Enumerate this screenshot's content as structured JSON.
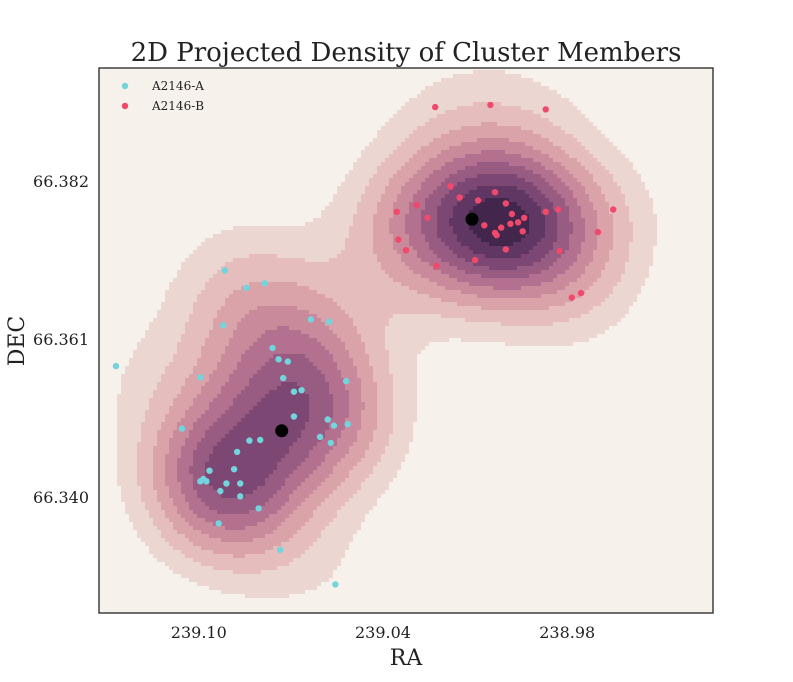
{
  "chart_data": {
    "type": "scatter",
    "title": "2D Projected Density of Cluster Members",
    "xlabel": "RA",
    "ylabel": "DEC",
    "xlim": [
      239.1325,
      238.9325
    ],
    "ylim": [
      66.3246,
      66.397
    ],
    "xticks": [
      239.1,
      239.04,
      238.98
    ],
    "xtick_labels": [
      "239.10",
      "239.04",
      "238.98"
    ],
    "yticks": [
      66.34,
      66.361,
      66.382
    ],
    "ytick_labels": [
      "66.340",
      "66.361",
      "66.382"
    ],
    "grid": false,
    "legend_position": "top-left",
    "background_color": "#f7f1eb",
    "density_colors": [
      "#ecd6d1",
      "#e5bdbc",
      "#d9a3a9",
      "#c98b9c",
      "#b3718f",
      "#985b82",
      "#7c4873",
      "#5f3762",
      "#42264b"
    ],
    "density_levels": [
      0.12,
      0.22,
      0.32,
      0.42,
      0.52,
      0.62,
      0.72,
      0.82,
      0.92
    ],
    "series": [
      {
        "name": "A2146-A",
        "color": "#72d4dc",
        "points": [
          [
            239.127,
            66.3574
          ],
          [
            239.1055,
            66.3491
          ],
          [
            239.0995,
            66.3559
          ],
          [
            239.0915,
            66.3701
          ],
          [
            239.092,
            66.3628
          ],
          [
            239.0845,
            66.3678
          ],
          [
            239.0785,
            66.3684
          ],
          [
            239.076,
            66.3598
          ],
          [
            239.074,
            66.3583
          ],
          [
            239.071,
            66.358
          ],
          [
            239.069,
            66.354
          ],
          [
            239.069,
            66.3507
          ],
          [
            239.0635,
            66.3636
          ],
          [
            239.0575,
            66.3633
          ],
          [
            239.052,
            66.3554
          ],
          [
            239.057,
            66.3472
          ],
          [
            239.058,
            66.3503
          ],
          [
            239.056,
            66.3495
          ],
          [
            239.0605,
            66.348
          ],
          [
            239.0515,
            66.3497
          ],
          [
            239.08,
            66.3476
          ],
          [
            239.0835,
            66.3475
          ],
          [
            239.0875,
            66.346
          ],
          [
            239.091,
            66.3418
          ],
          [
            239.093,
            66.3408
          ],
          [
            239.0965,
            66.3435
          ],
          [
            239.0985,
            66.3424
          ],
          [
            239.0975,
            66.3421
          ],
          [
            239.0995,
            66.3421
          ],
          [
            239.0885,
            66.3437
          ],
          [
            239.0865,
            66.3418
          ],
          [
            239.0865,
            66.3401
          ],
          [
            239.0805,
            66.3385
          ],
          [
            239.0935,
            66.3365
          ],
          [
            239.0735,
            66.333
          ],
          [
            239.0555,
            66.3284
          ],
          [
            239.0725,
            66.3558
          ],
          [
            239.0665,
            66.3542
          ]
        ]
      },
      {
        "name": "A2146-B",
        "color": "#f0496b",
        "points": [
          [
            239.023,
            66.3918
          ],
          [
            239.005,
            66.3921
          ],
          [
            238.987,
            66.3915
          ],
          [
            239.018,
            66.3813
          ],
          [
            239.015,
            66.3798
          ],
          [
            239.009,
            66.3794
          ],
          [
            239.0035,
            66.3805
          ],
          [
            239.0,
            66.379
          ],
          [
            238.998,
            66.3776
          ],
          [
            238.996,
            66.3765
          ],
          [
            238.994,
            66.3771
          ],
          [
            238.9985,
            66.3763
          ],
          [
            238.9945,
            66.3753
          ],
          [
            239.0015,
            66.3758
          ],
          [
            239.0035,
            66.3751
          ],
          [
            239.007,
            66.3761
          ],
          [
            239.0225,
            66.3707
          ],
          [
            239.0325,
            66.3728
          ],
          [
            239.035,
            66.3742
          ],
          [
            239.0355,
            66.3779
          ],
          [
            239.029,
            66.3788
          ],
          [
            239.0255,
            66.3771
          ],
          [
            238.987,
            66.3779
          ],
          [
            238.983,
            66.3782
          ],
          [
            238.9825,
            66.3727
          ],
          [
            238.9785,
            66.3665
          ],
          [
            238.9755,
            66.3671
          ],
          [
            238.965,
            66.3782
          ],
          [
            238.97,
            66.3752
          ],
          [
            239.003,
            66.3748
          ],
          [
            239.0,
            66.3729
          ],
          [
            239.01,
            66.3715
          ]
        ]
      }
    ],
    "centers": [
      {
        "name": "A2146-A center",
        "ra": 239.073,
        "dec": 66.3488,
        "color": "#000000"
      },
      {
        "name": "A2146-B center",
        "ra": 239.011,
        "dec": 66.3769,
        "color": "#000000"
      }
    ]
  }
}
